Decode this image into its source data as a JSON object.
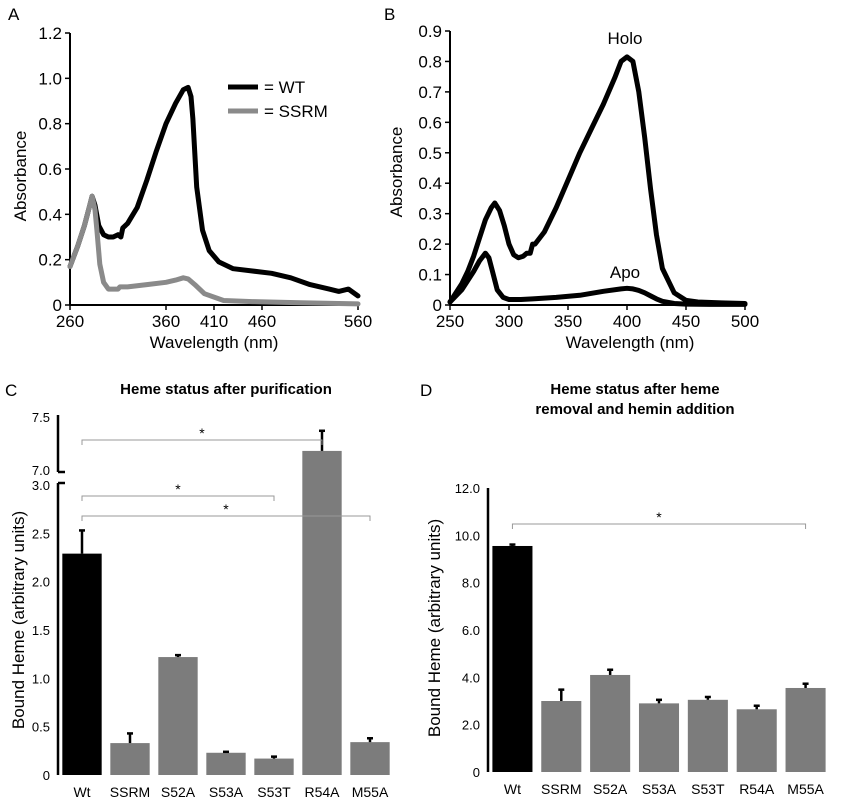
{
  "chart_data": [
    {
      "panel_label": "A",
      "type": "line",
      "xlabel": "Wavelength (nm)",
      "ylabel": "Absorbance",
      "xlim": [
        260,
        560
      ],
      "ylim": [
        0,
        1.2
      ],
      "xticks": [
        "260",
        "360",
        "410",
        "460",
        "560"
      ],
      "yticks": [
        "0",
        "0.2",
        "0.4",
        "0.6",
        "0.8",
        "1.0",
        "1.2"
      ],
      "legend": [
        "= WT",
        "= SSRM"
      ],
      "series": [
        {
          "name": "WT",
          "color": "#000000",
          "x": [
            260,
            268,
            275,
            280,
            283,
            286,
            290,
            295,
            300,
            305,
            310,
            313,
            315,
            320,
            330,
            340,
            350,
            360,
            370,
            378,
            383,
            386,
            388,
            392,
            398,
            405,
            415,
            430,
            450,
            470,
            490,
            510,
            530,
            540,
            550,
            560
          ],
          "y": [
            0.17,
            0.26,
            0.35,
            0.43,
            0.48,
            0.44,
            0.35,
            0.31,
            0.3,
            0.3,
            0.31,
            0.3,
            0.34,
            0.36,
            0.43,
            0.55,
            0.68,
            0.8,
            0.89,
            0.95,
            0.96,
            0.92,
            0.82,
            0.52,
            0.33,
            0.24,
            0.19,
            0.16,
            0.15,
            0.14,
            0.12,
            0.09,
            0.07,
            0.06,
            0.07,
            0.04
          ]
        },
        {
          "name": "SSRM",
          "color": "#8a8a8a",
          "x": [
            260,
            268,
            275,
            280,
            283,
            286,
            288,
            291,
            295,
            300,
            310,
            312,
            320,
            340,
            360,
            370,
            378,
            383,
            390,
            400,
            420,
            450,
            500,
            560
          ],
          "y": [
            0.17,
            0.26,
            0.35,
            0.43,
            0.48,
            0.42,
            0.33,
            0.18,
            0.1,
            0.07,
            0.07,
            0.08,
            0.08,
            0.09,
            0.1,
            0.11,
            0.12,
            0.115,
            0.09,
            0.05,
            0.02,
            0.015,
            0.01,
            0.005
          ]
        }
      ]
    },
    {
      "panel_label": "B",
      "type": "line",
      "xlabel": "Wavelength (nm)",
      "ylabel": "Absorbance",
      "xlim": [
        250,
        500
      ],
      "ylim": [
        0,
        0.9
      ],
      "xticks": [
        "250",
        "300",
        "350",
        "400",
        "450",
        "500"
      ],
      "yticks": [
        "0",
        "0.1",
        "0.2",
        "0.3",
        "0.4",
        "0.5",
        "0.6",
        "0.7",
        "0.8",
        "0.9"
      ],
      "annotations": [
        "Holo",
        "Apo"
      ],
      "series": [
        {
          "name": "Holo",
          "color": "#000000",
          "x": [
            250,
            255,
            260,
            265,
            270,
            275,
            280,
            285,
            288,
            292,
            296,
            300,
            304,
            308,
            312,
            315,
            318,
            320,
            322,
            330,
            340,
            350,
            360,
            370,
            380,
            390,
            395,
            400,
            405,
            410,
            415,
            420,
            425,
            430,
            440,
            450,
            460,
            480,
            500
          ],
          "y": [
            0.01,
            0.04,
            0.07,
            0.11,
            0.16,
            0.22,
            0.28,
            0.32,
            0.335,
            0.31,
            0.26,
            0.2,
            0.165,
            0.155,
            0.16,
            0.17,
            0.17,
            0.2,
            0.2,
            0.24,
            0.32,
            0.41,
            0.5,
            0.58,
            0.66,
            0.75,
            0.8,
            0.815,
            0.8,
            0.7,
            0.55,
            0.38,
            0.23,
            0.12,
            0.04,
            0.015,
            0.01,
            0.007,
            0.005
          ]
        },
        {
          "name": "Apo",
          "color": "#000000",
          "x": [
            250,
            255,
            260,
            265,
            270,
            275,
            280,
            283,
            286,
            290,
            295,
            300,
            310,
            320,
            340,
            360,
            380,
            395,
            400,
            405,
            410,
            415,
            420,
            425,
            430,
            440,
            450,
            470,
            500
          ],
          "y": [
            0.01,
            0.03,
            0.05,
            0.08,
            0.11,
            0.145,
            0.17,
            0.155,
            0.11,
            0.05,
            0.025,
            0.018,
            0.018,
            0.02,
            0.025,
            0.032,
            0.045,
            0.053,
            0.055,
            0.053,
            0.048,
            0.04,
            0.03,
            0.02,
            0.012,
            0.005,
            0.003,
            0.002,
            0.002
          ]
        }
      ]
    },
    {
      "panel_label": "C",
      "type": "bar",
      "title": "Heme status after purification",
      "ylabel": "Bound Heme (arbitrary units)",
      "categories": [
        "Wt",
        "SSRM",
        "S52A",
        "S53A",
        "S53T",
        "R54A",
        "M55A"
      ],
      "values": [
        2.29,
        0.33,
        1.22,
        0.23,
        0.17,
        7.18,
        0.34
      ],
      "errors": [
        0.24,
        0.1,
        0.02,
        0.01,
        0.02,
        0.19,
        0.04
      ],
      "bar_colors": [
        "#000000",
        "#7c7c7c",
        "#7c7c7c",
        "#7c7c7c",
        "#7c7c7c",
        "#7c7c7c",
        "#7c7c7c"
      ],
      "axis_break": [
        3.0,
        7.0
      ],
      "ylim": [
        0,
        7.5
      ],
      "yticks": [
        "0",
        "0.5",
        "1.0",
        "1.5",
        "2.0",
        "2.5",
        "3.0",
        "7.0",
        "7.5"
      ],
      "significance": [
        "*",
        "*",
        "*"
      ]
    },
    {
      "panel_label": "D",
      "type": "bar",
      "title": "Heme status after heme removal and hemin addition",
      "title_lines": [
        "Heme status after heme",
        "removal and hemin addition"
      ],
      "ylabel": "Bound Heme (arbitrary units)",
      "categories": [
        "Wt",
        "SSRM",
        "S52A",
        "S53A",
        "S53T",
        "R54A",
        "M55A"
      ],
      "values": [
        9.55,
        3.0,
        4.1,
        2.9,
        3.05,
        2.65,
        3.55
      ],
      "errors": [
        0.06,
        0.48,
        0.22,
        0.15,
        0.12,
        0.15,
        0.18
      ],
      "bar_colors": [
        "#000000",
        "#7c7c7c",
        "#7c7c7c",
        "#7c7c7c",
        "#7c7c7c",
        "#7c7c7c",
        "#7c7c7c"
      ],
      "ylim": [
        0,
        12
      ],
      "yticks": [
        "0",
        "2.0",
        "4.0",
        "6.0",
        "8.0",
        "10.0",
        "12.0"
      ],
      "significance": [
        "*"
      ]
    }
  ]
}
